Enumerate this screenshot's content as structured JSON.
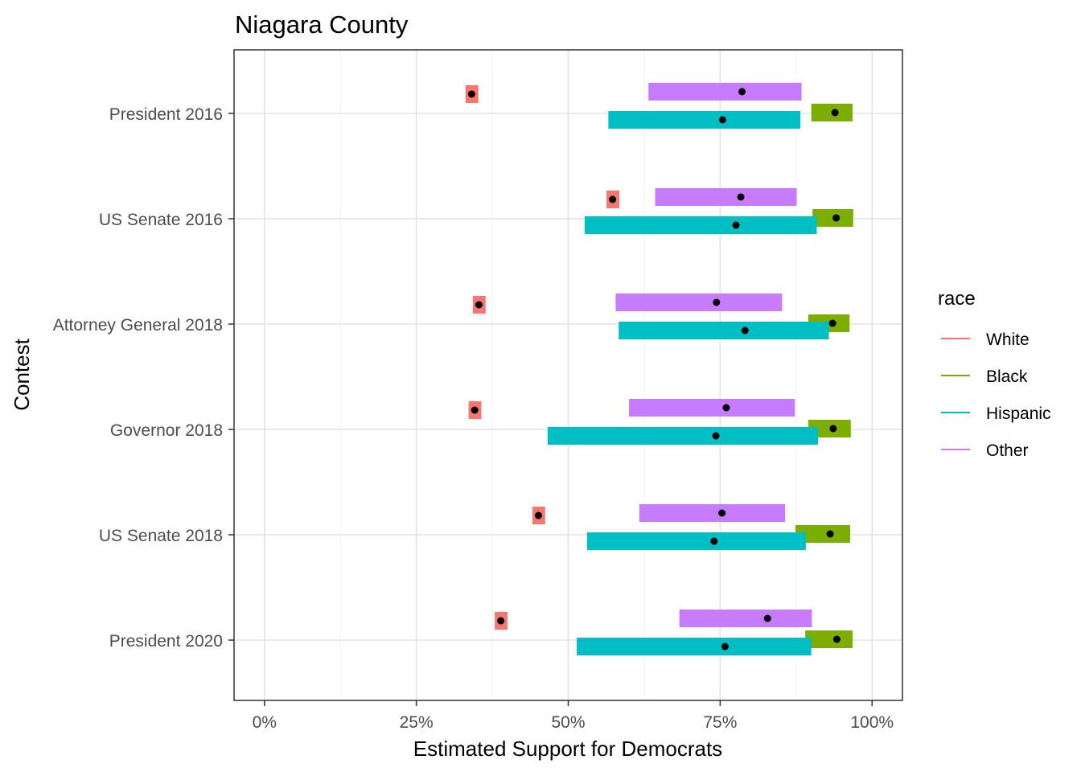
{
  "chart_data": {
    "type": "range",
    "title": "Niagara County",
    "xlabel": "Estimated Support for Democrats",
    "ylabel": "Contest",
    "xlim": [
      -0.05,
      1.05
    ],
    "x_ticks": [
      0,
      0.25,
      0.5,
      0.75,
      1.0
    ],
    "x_tick_labels": [
      "0%",
      "25%",
      "50%",
      "75%",
      "100%"
    ],
    "categories": [
      "President 2016",
      "US Senate 2016",
      "Attorney General 2018",
      "Governor 2018",
      "US Senate 2018",
      "President 2020"
    ],
    "legend": {
      "title": "race",
      "position": "right"
    },
    "series": [
      {
        "name": "White",
        "color": "#F8766D",
        "estimate": [
          0.341,
          0.573,
          0.353,
          0.346,
          0.451,
          0.389
        ],
        "lower": [
          0.331,
          0.563,
          0.343,
          0.336,
          0.441,
          0.379
        ],
        "upper": [
          0.352,
          0.584,
          0.364,
          0.357,
          0.462,
          0.4
        ]
      },
      {
        "name": "Black",
        "color": "#7CAE00",
        "estimate": [
          0.939,
          0.941,
          0.935,
          0.936,
          0.931,
          0.942
        ],
        "lower": [
          0.9,
          0.902,
          0.895,
          0.895,
          0.874,
          0.89
        ],
        "upper": [
          0.968,
          0.969,
          0.963,
          0.965,
          0.964,
          0.968
        ]
      },
      {
        "name": "Hispanic",
        "color": "#00BFC4",
        "estimate": [
          0.754,
          0.776,
          0.791,
          0.743,
          0.74,
          0.758
        ],
        "lower": [
          0.566,
          0.527,
          0.583,
          0.466,
          0.531,
          0.514
        ],
        "upper": [
          0.882,
          0.909,
          0.929,
          0.911,
          0.891,
          0.9
        ]
      },
      {
        "name": "Other",
        "color": "#C77CFF",
        "estimate": [
          0.786,
          0.784,
          0.744,
          0.76,
          0.753,
          0.828
        ],
        "lower": [
          0.632,
          0.643,
          0.578,
          0.6,
          0.617,
          0.683
        ],
        "upper": [
          0.884,
          0.876,
          0.852,
          0.873,
          0.857,
          0.901
        ]
      }
    ]
  }
}
